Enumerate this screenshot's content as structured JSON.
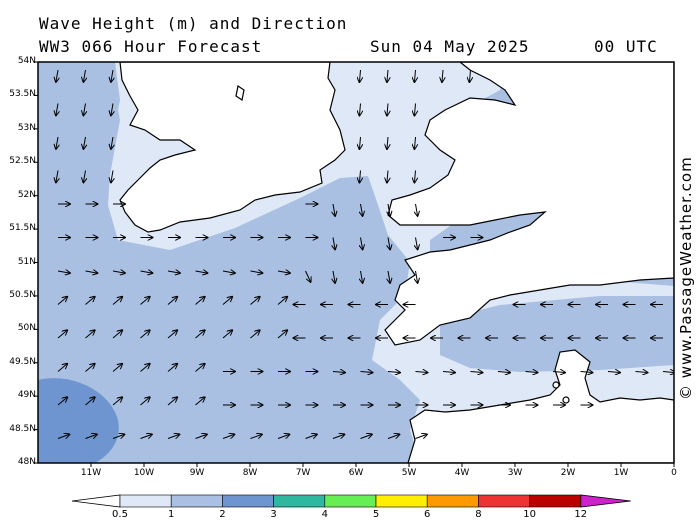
{
  "header": {
    "title": "Wave Height (m) and Direction",
    "model": "WW3 066 Hour Forecast",
    "date": "Sun 04 May 2025",
    "time": "00 UTC"
  },
  "map": {
    "lat_labels": [
      "54N",
      "53.5N",
      "53N",
      "52.5N",
      "52N",
      "51.5N",
      "51N",
      "50.5N",
      "50N",
      "49.5N",
      "49N",
      "48.5N",
      "48N"
    ],
    "lon_labels": [
      "11W",
      "10W",
      "9W",
      "8W",
      "7W",
      "6W",
      "5W",
      "4W",
      "3W",
      "2W",
      "1W",
      "0"
    ],
    "lon_range": [
      -12,
      0
    ],
    "lat_range": [
      48,
      54
    ],
    "regions_shown": [
      "Ireland",
      "Wales",
      "Cornwall and Devon",
      "southern England",
      "Brittany",
      "Channel Islands"
    ]
  },
  "colorbar": {
    "ticks": [
      "0.5",
      "1",
      "2",
      "3",
      "4",
      "5",
      "6",
      "8",
      "10",
      "12"
    ],
    "colors": [
      "#dfe8f6",
      "#a9c0e2",
      "#6f95d1",
      "#2fb8a0",
      "#66ee55",
      "#ffee00",
      "#ff9900",
      "#ee3333",
      "#bb0000",
      "#cc22cc"
    ]
  },
  "palette": {
    "sea_low": "#dfe8f6",
    "sea_mid": "#a9c0e2",
    "sea_high": "#6f95d1",
    "land": "#ffffff",
    "coast": "#000000"
  },
  "credit": "© www.PassageWeather.com"
}
